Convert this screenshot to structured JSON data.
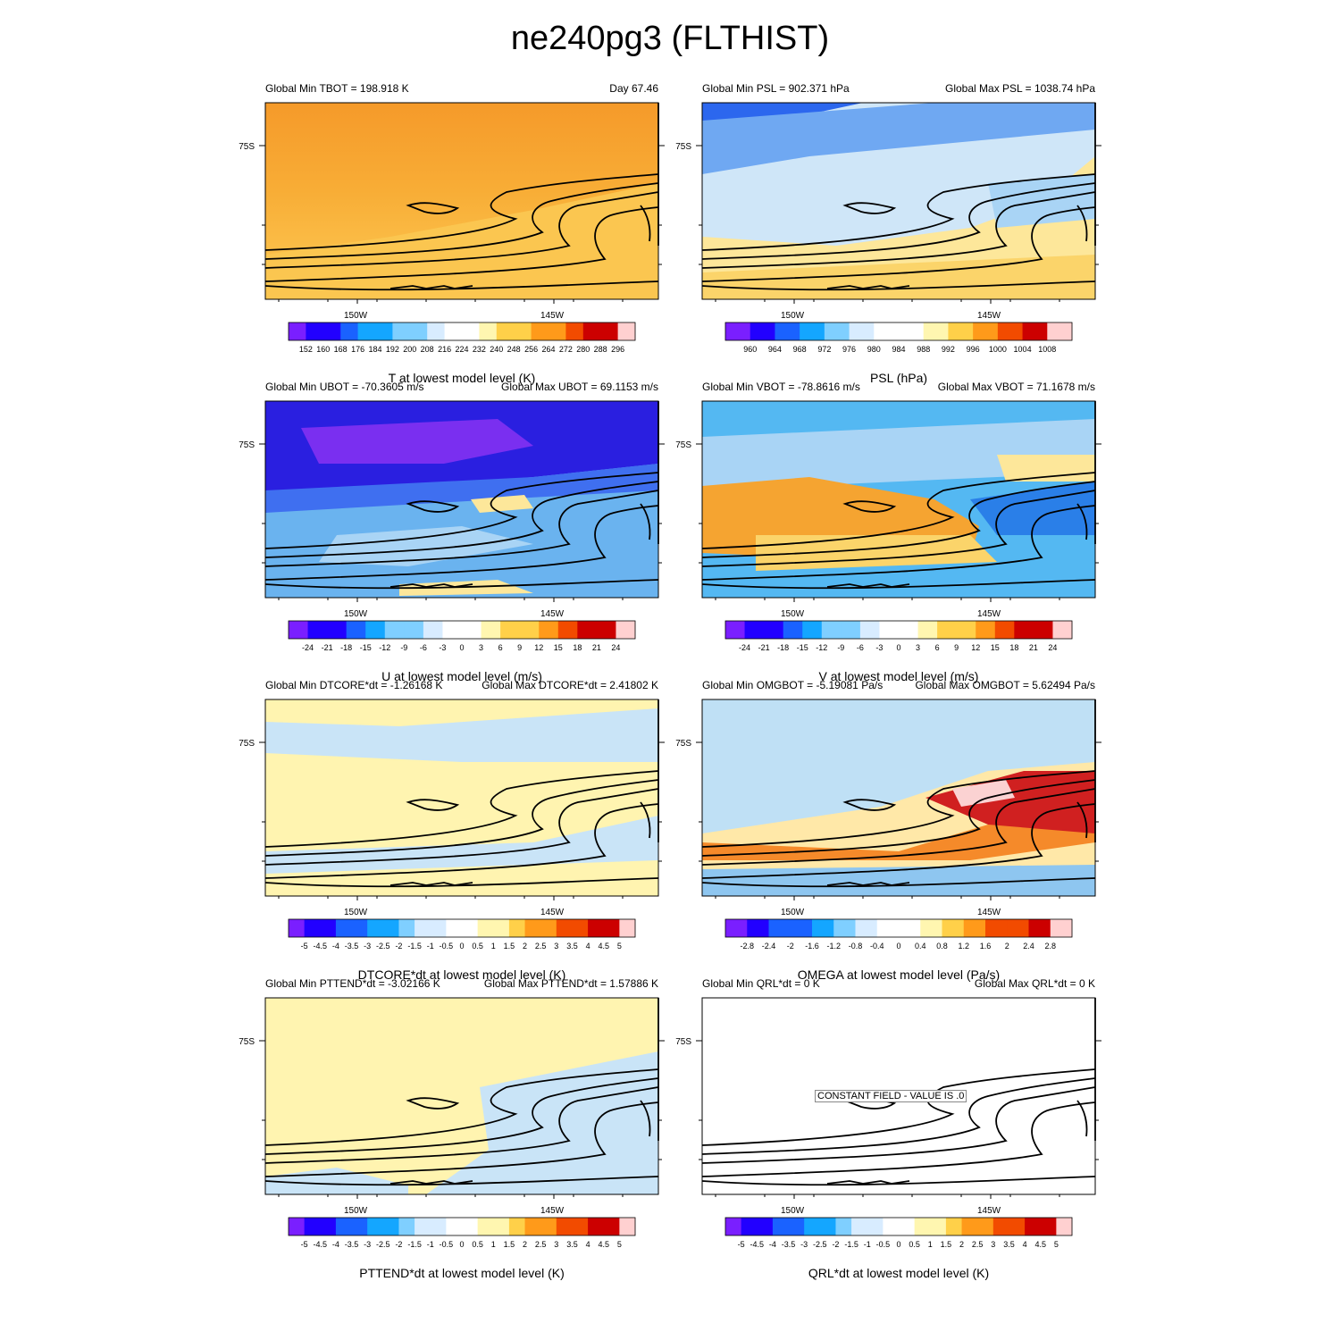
{
  "page_title": "ne240pg3 (FLTHIST)",
  "colors": {
    "map_background": "#ffffff",
    "contour": "#000000",
    "colorbar_ramp": [
      "#7a1fff",
      "#2200ff",
      "#1a62ff",
      "#14a6ff",
      "#7fcfff",
      "#d8ecff",
      "#ffffff",
      "#fff6b0",
      "#ffd049",
      "#ff9a1a",
      "#f24b00",
      "#cc0000",
      "#ffd0d0"
    ]
  },
  "panels": [
    {
      "id": "tbot",
      "header_left": "Global Min TBOT = 198.918 K",
      "header_right": "Day 67.46",
      "lat_label": "75S",
      "lon_labels": [
        "150W",
        "145W"
      ],
      "colorbar_ticks": [
        "152",
        "160",
        "168",
        "176",
        "184",
        "192",
        "200",
        "208",
        "216",
        "224",
        "232",
        "240",
        "248",
        "256",
        "264",
        "272",
        "280",
        "288",
        "296"
      ],
      "colorbar_label": "T at lowest model level (K)",
      "constant_field_label": "",
      "field": {
        "type": "gradient",
        "stops": [
          [
            "0",
            "#f59a2a"
          ],
          [
            "0.45",
            "#f8ad36"
          ],
          [
            "0.8",
            "#fbc04a"
          ],
          [
            "1",
            "#fcd05c"
          ]
        ]
      }
    },
    {
      "id": "psl",
      "header_left": "Global Min PSL = 902.371 hPa",
      "header_right": "Global Max PSL = 1038.74 hPa",
      "lat_label": "75S",
      "lon_labels": [
        "150W",
        "145W"
      ],
      "colorbar_ticks": [
        "960",
        "964",
        "968",
        "972",
        "976",
        "980",
        "984",
        "988",
        "992",
        "996",
        "1000",
        "1004",
        "1008"
      ],
      "colorbar_label": "PSL (hPa)",
      "constant_field_label": "",
      "field": {
        "type": "psl"
      }
    },
    {
      "id": "ubot",
      "header_left": "Global Min UBOT = -70.3605 m/s",
      "header_right": "Global Max UBOT = 69.1153 m/s",
      "lat_label": "75S",
      "lon_labels": [
        "150W",
        "145W"
      ],
      "colorbar_ticks": [
        "-24",
        "-21",
        "-18",
        "-15",
        "-12",
        "-9",
        "-6",
        "-3",
        "0",
        "3",
        "6",
        "9",
        "12",
        "15",
        "18",
        "21",
        "24"
      ],
      "colorbar_label": "U at lowest model level (m/s)",
      "constant_field_label": "",
      "field": {
        "type": "ubot"
      }
    },
    {
      "id": "vbot",
      "header_left": "Global Min VBOT = -78.8616 m/s",
      "header_right": "Global Max VBOT = 71.1678 m/s",
      "lat_label": "75S",
      "lon_labels": [
        "150W",
        "145W"
      ],
      "colorbar_ticks": [
        "-24",
        "-21",
        "-18",
        "-15",
        "-12",
        "-9",
        "-6",
        "-3",
        "0",
        "3",
        "6",
        "9",
        "12",
        "15",
        "18",
        "21",
        "24"
      ],
      "colorbar_label": "V at lowest model level (m/s)",
      "constant_field_label": "",
      "field": {
        "type": "vbot"
      }
    },
    {
      "id": "dtcore",
      "header_left": "Global Min DTCORE*dt = -1.26168 K",
      "header_right": "Global Max DTCORE*dt = 2.41802 K",
      "lat_label": "75S",
      "lon_labels": [
        "150W",
        "145W"
      ],
      "colorbar_ticks": [
        "-5",
        "-4.5",
        "-4",
        "-3.5",
        "-3",
        "-2.5",
        "-2",
        "-1.5",
        "-1",
        "-0.5",
        "0",
        "0.5",
        "1",
        "1.5",
        "2",
        "2.5",
        "3",
        "3.5",
        "4",
        "4.5",
        "5"
      ],
      "colorbar_label": "DTCORE*dt at lowest model level (K)",
      "constant_field_label": "",
      "field": {
        "type": "dtcore"
      }
    },
    {
      "id": "omgbot",
      "header_left": "Global Min OMGBOT = -5.19081 Pa/s",
      "header_right": "Global Max OMGBOT = 5.62494 Pa/s",
      "lat_label": "75S",
      "lon_labels": [
        "150W",
        "145W"
      ],
      "colorbar_ticks": [
        "-2.8",
        "-2.4",
        "-2",
        "-1.6",
        "-1.2",
        "-0.8",
        "-0.4",
        "0",
        "0.4",
        "0.8",
        "1.2",
        "1.6",
        "2",
        "2.4",
        "2.8"
      ],
      "colorbar_label": "OMEGA at lowest model level (Pa/s)",
      "constant_field_label": "",
      "field": {
        "type": "omgbot"
      }
    },
    {
      "id": "pttend",
      "header_left": "Global Min PTTEND*dt = -3.02166 K",
      "header_right": "Global Max PTTEND*dt = 1.57886 K",
      "lat_label": "75S",
      "lon_labels": [
        "150W",
        "145W"
      ],
      "colorbar_ticks": [
        "-5",
        "-4.5",
        "-4",
        "-3.5",
        "-3",
        "-2.5",
        "-2",
        "-1.5",
        "-1",
        "-0.5",
        "0",
        "0.5",
        "1",
        "1.5",
        "2",
        "2.5",
        "3",
        "3.5",
        "4",
        "4.5",
        "5"
      ],
      "colorbar_label": "PTTEND*dt at lowest model level (K)",
      "constant_field_label": "",
      "field": {
        "type": "pttend"
      }
    },
    {
      "id": "qrl",
      "header_left": "Global Min QRL*dt = 0 K",
      "header_right": "Global Max QRL*dt = 0 K",
      "lat_label": "75S",
      "lon_labels": [
        "150W",
        "145W"
      ],
      "colorbar_ticks": [
        "-5",
        "-4.5",
        "-4",
        "-3.5",
        "-3",
        "-2.5",
        "-2",
        "-1.5",
        "-1",
        "-0.5",
        "0",
        "0.5",
        "1",
        "1.5",
        "2",
        "2.5",
        "3",
        "3.5",
        "4",
        "4.5",
        "5"
      ],
      "colorbar_label": "QRL*dt at lowest model level (K)",
      "constant_field_label": "CONSTANT FIELD - VALUE IS .0",
      "field": {
        "type": "blank"
      }
    }
  ]
}
